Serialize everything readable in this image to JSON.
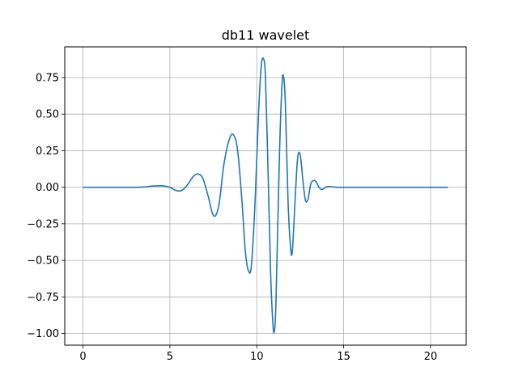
{
  "chart_data": {
    "type": "line",
    "title": "db11 wavelet",
    "xlabel": "",
    "ylabel": "",
    "xlim": [
      -1.05,
      22.05
    ],
    "ylim": [
      -1.08,
      0.96
    ],
    "grid": true,
    "x_ticks": [
      0,
      5,
      10,
      15,
      20
    ],
    "x_tick_labels": [
      "0",
      "5",
      "10",
      "15",
      "20"
    ],
    "y_ticks": [
      -1.0,
      -0.75,
      -0.5,
      -0.25,
      0.0,
      0.25,
      0.5,
      0.75
    ],
    "y_tick_labels": [
      "−1.00",
      "−0.75",
      "−0.50",
      "−0.25",
      "0.00",
      "0.25",
      "0.50",
      "0.75"
    ],
    "series_color": "#1f77b4",
    "series": [
      {
        "name": "",
        "x": [
          0,
          1,
          2,
          3,
          3.5,
          4.0,
          4.5,
          5.0,
          5.3,
          5.6,
          5.9,
          6.2,
          6.4,
          6.65,
          6.9,
          7.2,
          7.45,
          7.65,
          7.85,
          8.1,
          8.4,
          8.65,
          8.9,
          9.15,
          9.35,
          9.55,
          9.7,
          9.9,
          10.1,
          10.25,
          10.38,
          10.5,
          10.65,
          10.8,
          10.92,
          11.0,
          11.1,
          11.3,
          11.45,
          11.55,
          11.65,
          11.8,
          11.95,
          12.05,
          12.2,
          12.35,
          12.5,
          12.65,
          12.8,
          12.95,
          13.1,
          13.25,
          13.4,
          13.55,
          13.7,
          13.85,
          14.0,
          14.2,
          14.4,
          14.6,
          15,
          16,
          17,
          18,
          19,
          20,
          21
        ],
        "y": [
          0,
          0,
          0,
          0,
          0.002,
          0.008,
          0.01,
          0.0,
          -0.02,
          -0.025,
          0.0,
          0.05,
          0.08,
          0.09,
          0.06,
          -0.06,
          -0.18,
          -0.19,
          -0.1,
          0.15,
          0.32,
          0.36,
          0.25,
          -0.1,
          -0.45,
          -0.58,
          -0.52,
          -0.1,
          0.5,
          0.82,
          0.88,
          0.75,
          0.1,
          -0.6,
          -0.92,
          -0.99,
          -0.8,
          0.2,
          0.7,
          0.75,
          0.55,
          -0.1,
          -0.42,
          -0.43,
          -0.1,
          0.2,
          0.22,
          0.05,
          -0.09,
          -0.08,
          0.02,
          0.045,
          0.04,
          0.005,
          -0.015,
          -0.01,
          0.003,
          0.005,
          0.002,
          0,
          0,
          0,
          0,
          0,
          0,
          0,
          0
        ]
      }
    ]
  }
}
